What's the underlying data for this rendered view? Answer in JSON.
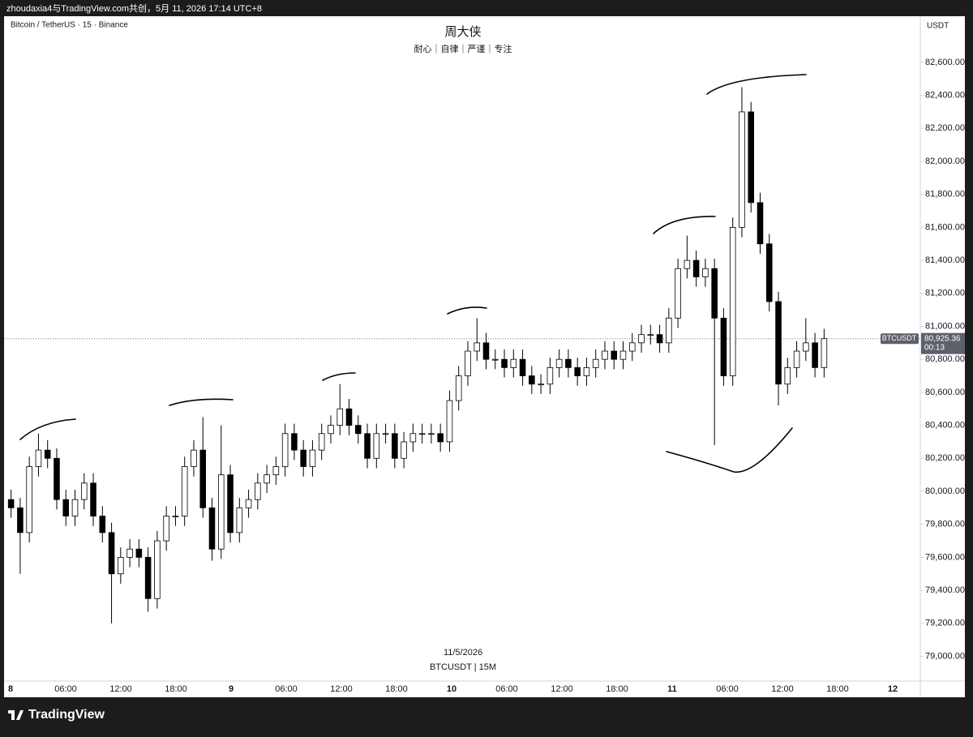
{
  "header": {
    "text": "zhoudaxia4与TradingView.com共创，5月 11, 2026 17:14 UTC+8"
  },
  "footer": {
    "brand": "TradingView"
  },
  "chart_data": {
    "type": "candlestick",
    "symbol_label": "Bitcoin / TetherUS · 15 · Binance",
    "title": "周大侠",
    "subtitle": "耐心｜自律｜严谨｜专注",
    "currency": "USDT",
    "date_label": "11/5/2026",
    "footer_label": "BTCUSDT | 15M",
    "x_axis_labels": [
      "8",
      "06:00",
      "12:00",
      "18:00",
      "9",
      "06:00",
      "12:00",
      "18:00",
      "10",
      "06:00",
      "12:00",
      "18:00",
      "11",
      "06:00",
      "12:00",
      "18:00",
      "12"
    ],
    "up_color": "#ffffff",
    "down_color": "#000000",
    "wick_color": "#000000",
    "grid": false,
    "ylim": [
      78850,
      82870
    ],
    "yticks": [
      {
        "value": 79000,
        "label": "79,000.00"
      },
      {
        "value": 79200,
        "label": "79,200.00"
      },
      {
        "value": 79400,
        "label": "79,400.00"
      },
      {
        "value": 79600,
        "label": "79,600.00"
      },
      {
        "value": 79800,
        "label": "79,800.00"
      },
      {
        "value": 80000,
        "label": "80,000.00"
      },
      {
        "value": 80200,
        "label": "80,200.00"
      },
      {
        "value": 80400,
        "label": "80,400.00"
      },
      {
        "value": 80600,
        "label": "80,600.00"
      },
      {
        "value": 80800,
        "label": "80,800.00"
      },
      {
        "value": 81000,
        "label": "81,000.00"
      },
      {
        "value": 81200,
        "label": "81,200.00"
      },
      {
        "value": 81400,
        "label": "81,400.00"
      },
      {
        "value": 81600,
        "label": "81,600.00"
      },
      {
        "value": 81800,
        "label": "81,800.00"
      },
      {
        "value": 82000,
        "label": "82,000.00"
      },
      {
        "value": 82200,
        "label": "82,200.00"
      },
      {
        "value": 82400,
        "label": "82,400.00"
      },
      {
        "value": 82600,
        "label": "82,600.00"
      }
    ],
    "last_price": {
      "symbol": "BTCUSDT",
      "value": 80925.36,
      "label": "80,925.36",
      "countdown": "00:13"
    },
    "open": [
      79950,
      79900,
      79750,
      80150,
      80250,
      80200,
      79950,
      79850,
      79950,
      80050,
      79850,
      79750,
      79500,
      79600,
      79650,
      79600,
      79350,
      79700,
      79850,
      79850,
      80150,
      80250,
      79900,
      79650,
      80100,
      79750,
      79900,
      79950,
      80050,
      80100,
      80150,
      80350,
      80250,
      80150,
      80250,
      80350,
      80400,
      80500,
      80400,
      80350,
      80200,
      80350,
      80350,
      80200,
      80300,
      80350,
      80350,
      80350,
      80300,
      80550,
      80700,
      80850,
      80900,
      80800,
      80800,
      80750,
      80800,
      80700,
      80650,
      80650,
      80750,
      80800,
      80750,
      80700,
      80750,
      80800,
      80850,
      80800,
      80850,
      80900,
      80950,
      80950,
      80900,
      81050,
      81350,
      81400,
      81300,
      81350,
      81050,
      80700,
      81600,
      82300,
      81750,
      81500,
      81150,
      80650,
      80750,
      80850,
      80900,
      80750
    ],
    "high": [
      80010,
      79960,
      80210,
      80350,
      80310,
      80260,
      80010,
      80010,
      80110,
      80110,
      79910,
      79810,
      79660,
      79710,
      79710,
      79660,
      79760,
      79910,
      79910,
      80210,
      80310,
      80450,
      79960,
      80400,
      80160,
      79960,
      80010,
      80110,
      80160,
      80210,
      80410,
      80410,
      80310,
      80310,
      80410,
      80460,
      80650,
      80560,
      80460,
      80410,
      80410,
      80410,
      80410,
      80360,
      80410,
      80410,
      80410,
      80410,
      80610,
      80760,
      80910,
      81050,
      80960,
      80860,
      80860,
      80860,
      80860,
      80760,
      80710,
      80810,
      80860,
      80860,
      80810,
      80810,
      80860,
      80910,
      80910,
      80910,
      80960,
      81010,
      81010,
      81010,
      81110,
      81410,
      81550,
      81460,
      81410,
      81410,
      81110,
      81660,
      82450,
      82360,
      81810,
      81560,
      81210,
      80810,
      80910,
      81050,
      80960,
      80985
    ],
    "low": [
      79840,
      79500,
      79690,
      80090,
      80140,
      79890,
      79790,
      79790,
      79890,
      79790,
      79690,
      79200,
      79440,
      79540,
      79540,
      79270,
      79290,
      79640,
      79790,
      79790,
      80090,
      79840,
      79580,
      79590,
      79690,
      79690,
      79840,
      79890,
      79990,
      80040,
      80090,
      80190,
      80090,
      80090,
      80190,
      80290,
      80340,
      80340,
      80290,
      80140,
      80140,
      80290,
      80140,
      80140,
      80240,
      80290,
      80290,
      80240,
      80240,
      80490,
      80640,
      80790,
      80740,
      80740,
      80690,
      80690,
      80640,
      80590,
      80590,
      80590,
      80690,
      80690,
      80640,
      80640,
      80690,
      80740,
      80740,
      80740,
      80790,
      80840,
      80890,
      80840,
      80840,
      80990,
      81290,
      81240,
      81240,
      80280,
      80640,
      80640,
      81540,
      81690,
      81440,
      81090,
      80520,
      80590,
      80690,
      80790,
      80690,
      80690
    ],
    "close": [
      79900,
      79750,
      80150,
      80250,
      80200,
      79950,
      79850,
      79950,
      80050,
      79850,
      79750,
      79500,
      79600,
      79650,
      79600,
      79350,
      79700,
      79850,
      79850,
      80150,
      80250,
      79900,
      79650,
      80100,
      79750,
      79900,
      79950,
      80050,
      80100,
      80150,
      80350,
      80250,
      80150,
      80250,
      80350,
      80400,
      80500,
      80400,
      80350,
      80200,
      80350,
      80350,
      80200,
      80300,
      80350,
      80350,
      80350,
      80300,
      80550,
      80700,
      80850,
      80900,
      80800,
      80800,
      80750,
      80800,
      80700,
      80650,
      80650,
      80750,
      80800,
      80750,
      80700,
      80750,
      80800,
      80850,
      80800,
      80850,
      80900,
      80950,
      80950,
      80900,
      81050,
      81350,
      81400,
      81300,
      81350,
      81050,
      80700,
      81600,
      82300,
      81750,
      81500,
      81150,
      80650,
      80750,
      80850,
      80900,
      80750,
      80925.36
    ]
  }
}
